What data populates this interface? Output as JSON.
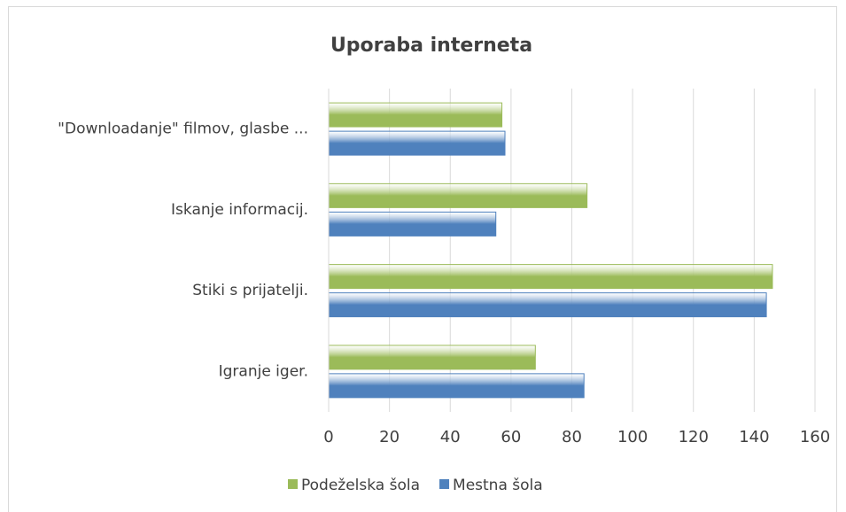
{
  "chart_data": {
    "type": "bar",
    "orientation": "horizontal",
    "title": "Uporaba interneta",
    "categories": [
      "Igranje iger.",
      "Stiki s prijatelji.",
      "Iskanje informacij.",
      "\"Downloadanje\" filmov, glasbe ..."
    ],
    "series": [
      {
        "name": "Podeželska šola",
        "color": "#9bbb59",
        "values": [
          68,
          146,
          85,
          57
        ]
      },
      {
        "name": "Mestna šola",
        "color": "#4f81bd",
        "values": [
          84,
          144,
          55,
          58
        ]
      }
    ],
    "xlim": [
      0,
      160
    ],
    "xticks": [
      0,
      20,
      40,
      60,
      80,
      100,
      120,
      140,
      160
    ],
    "grid": true,
    "legend": "bottom"
  }
}
